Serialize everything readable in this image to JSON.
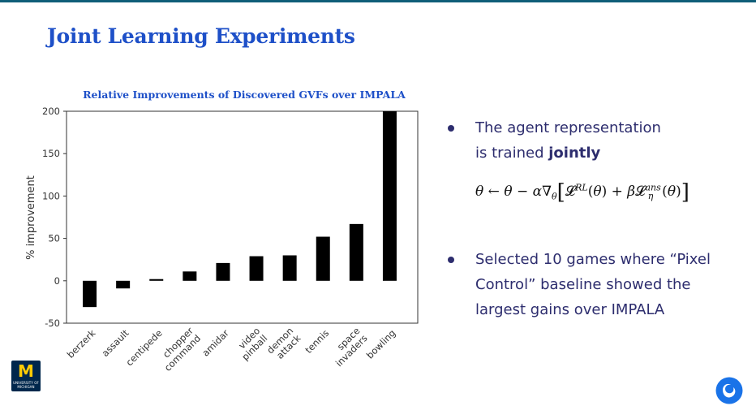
{
  "slide": {
    "title": "Joint Learning Experiments"
  },
  "bullets": {
    "b1_line1": "The agent representation",
    "b1_line2_pre": "is trained ",
    "b1_line2_bold": "jointly",
    "b2_line1": "Selected 10 games where “Pixel",
    "b2_line2": "Control” baseline showed the",
    "b2_line3": "largest gains over IMPALA"
  },
  "logos": {
    "umich_letter": "M",
    "umich_text": "UNIVERSITY OF MICHIGAN"
  },
  "colors": {
    "title": "#1e50c8",
    "bullet_text": "#2d2d6e",
    "chart_title": "#1e50c8",
    "bar": "#000000"
  },
  "chart_data": {
    "type": "bar",
    "title": "Relative Improvements of Discovered GVFs over IMPALA",
    "ylabel": "% improvement",
    "xlabel": "",
    "ylim": [
      -50,
      200
    ],
    "yticks": [
      200,
      150,
      100,
      50,
      0,
      -50
    ],
    "categories": [
      [
        "berzerk"
      ],
      [
        "assault"
      ],
      [
        "centipede"
      ],
      [
        "chopper",
        "command"
      ],
      [
        "amidar"
      ],
      [
        "video",
        "pinball"
      ],
      [
        "demon",
        "attack"
      ],
      [
        "tennis"
      ],
      [
        "space",
        "invaders"
      ],
      [
        "bowling"
      ]
    ],
    "values": [
      -31,
      -9,
      2,
      11,
      21,
      29,
      30,
      52,
      67,
      200
    ],
    "grid": false,
    "legend": "none"
  }
}
